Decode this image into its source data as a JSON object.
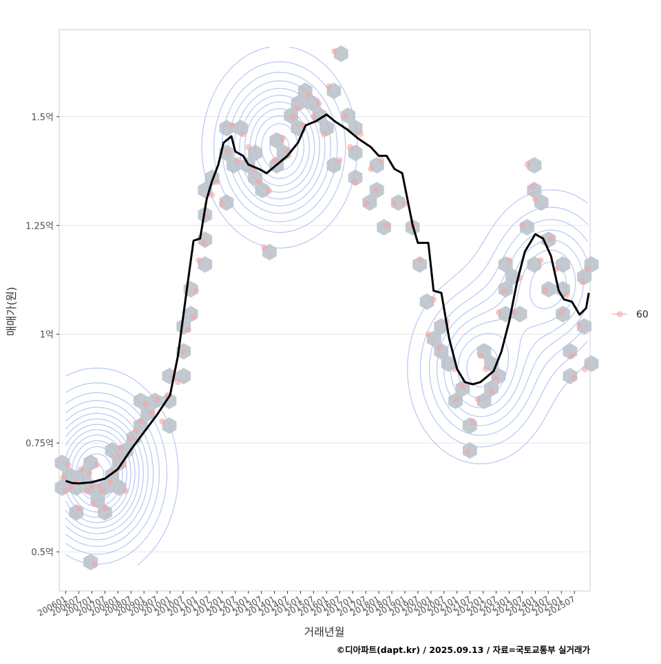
{
  "chart_data": {
    "type": "scatter",
    "title": "",
    "xlabel": "거래년월",
    "ylabel": "매매가(원)",
    "caption": "©디아파트(dapt.kr) / 2025.09.13 / 자료=국토교통부 실거래가",
    "legend": {
      "label": "60",
      "placement": "right"
    },
    "x_ticks": [
      "200601",
      "200607",
      "200701",
      "200707",
      "200801",
      "200807",
      "200901",
      "200907",
      "201001",
      "201007",
      "201101",
      "201107",
      "201201",
      "201207",
      "201301",
      "201307",
      "201401",
      "201407",
      "201501",
      "201507",
      "201601",
      "201607",
      "201701",
      "201707",
      "201801",
      "201807",
      "201901",
      "201907",
      "202001",
      "202007",
      "202101",
      "202107",
      "202201",
      "202207",
      "202301",
      "202307",
      "202401",
      "202407",
      "202501",
      "202507"
    ],
    "y_ticks": [
      {
        "value": 0.5,
        "label": "0.5억"
      },
      {
        "value": 0.75,
        "label": "0.75억"
      },
      {
        "value": 1.0,
        "label": "1억"
      },
      {
        "value": 1.25,
        "label": "1.25억"
      },
      {
        "value": 1.5,
        "label": "1.5억"
      }
    ],
    "ylim": [
      0.41,
      1.7
    ],
    "xlim": [
      2005.75,
      2026.1
    ],
    "grid": true,
    "colors": {
      "trend": "#000000",
      "points": "#f4a6a6",
      "hex": "#b9c0c8",
      "contour": "#9db4f0",
      "grid": "#e6e6e6",
      "panel_border": "#cccccc"
    },
    "trend_line": [
      [
        2006.0,
        0.663
      ],
      [
        2006.25,
        0.658
      ],
      [
        2006.5,
        0.657
      ],
      [
        2007.0,
        0.66
      ],
      [
        2007.5,
        0.668
      ],
      [
        2008.0,
        0.69
      ],
      [
        2008.5,
        0.735
      ],
      [
        2009.0,
        0.775
      ],
      [
        2009.5,
        0.815
      ],
      [
        2010.0,
        0.86
      ],
      [
        2010.3,
        0.95
      ],
      [
        2010.5,
        1.04
      ],
      [
        2010.75,
        1.15
      ],
      [
        2010.9,
        1.215
      ],
      [
        2011.15,
        1.22
      ],
      [
        2011.4,
        1.31
      ],
      [
        2011.6,
        1.35
      ],
      [
        2011.85,
        1.39
      ],
      [
        2012.05,
        1.44
      ],
      [
        2012.35,
        1.455
      ],
      [
        2012.5,
        1.42
      ],
      [
        2012.8,
        1.41
      ],
      [
        2013.0,
        1.39
      ],
      [
        2013.4,
        1.38
      ],
      [
        2013.7,
        1.37
      ],
      [
        2014.0,
        1.385
      ],
      [
        2014.5,
        1.41
      ],
      [
        2014.9,
        1.44
      ],
      [
        2015.2,
        1.48
      ],
      [
        2015.6,
        1.49
      ],
      [
        2016.0,
        1.505
      ],
      [
        2016.3,
        1.49
      ],
      [
        2016.8,
        1.47
      ],
      [
        2017.2,
        1.45
      ],
      [
        2017.7,
        1.43
      ],
      [
        2018.0,
        1.41
      ],
      [
        2018.3,
        1.41
      ],
      [
        2018.6,
        1.38
      ],
      [
        2018.9,
        1.37
      ],
      [
        2019.1,
        1.31
      ],
      [
        2019.3,
        1.25
      ],
      [
        2019.5,
        1.21
      ],
      [
        2019.9,
        1.21
      ],
      [
        2020.1,
        1.1
      ],
      [
        2020.4,
        1.095
      ],
      [
        2020.7,
        0.99
      ],
      [
        2021.0,
        0.92
      ],
      [
        2021.3,
        0.89
      ],
      [
        2021.6,
        0.885
      ],
      [
        2021.9,
        0.89
      ],
      [
        2022.1,
        0.9
      ],
      [
        2022.4,
        0.915
      ],
      [
        2022.7,
        0.96
      ],
      [
        2023.0,
        1.03
      ],
      [
        2023.3,
        1.12
      ],
      [
        2023.6,
        1.19
      ],
      [
        2023.8,
        1.21
      ],
      [
        2024.0,
        1.23
      ],
      [
        2024.3,
        1.22
      ],
      [
        2024.6,
        1.18
      ],
      [
        2024.9,
        1.1
      ],
      [
        2025.1,
        1.08
      ],
      [
        2025.4,
        1.075
      ],
      [
        2025.7,
        1.045
      ],
      [
        2025.95,
        1.06
      ],
      [
        2026.05,
        1.095
      ]
    ],
    "density_centers": [
      {
        "x": 2007.2,
        "y": 0.68,
        "n": 15
      },
      {
        "x": 2014.2,
        "y": 1.43,
        "n": 12
      },
      {
        "x": 2021.9,
        "y": 0.92,
        "n": 9
      },
      {
        "x": 2024.6,
        "y": 1.12,
        "n": 8
      }
    ],
    "points": [
      [
        2005.9,
        0.67
      ],
      [
        2006.0,
        0.64
      ],
      [
        2006.1,
        0.7
      ],
      [
        2006.2,
        0.65
      ],
      [
        2006.4,
        0.66
      ],
      [
        2006.5,
        0.6
      ],
      [
        2006.6,
        0.69
      ],
      [
        2006.8,
        0.64
      ],
      [
        2006.9,
        0.68
      ],
      [
        2007.0,
        0.65
      ],
      [
        2007.1,
        0.61
      ],
      [
        2007.1,
        0.47
      ],
      [
        2007.2,
        0.7
      ],
      [
        2007.3,
        0.65
      ],
      [
        2007.4,
        0.64
      ],
      [
        2007.5,
        0.6
      ],
      [
        2007.7,
        0.66
      ],
      [
        2007.8,
        0.68
      ],
      [
        2008.0,
        0.72
      ],
      [
        2008.1,
        0.74
      ],
      [
        2008.2,
        0.7
      ],
      [
        2008.3,
        0.64
      ],
      [
        2008.5,
        0.76
      ],
      [
        2008.7,
        0.78
      ],
      [
        2008.9,
        0.8
      ],
      [
        2009.1,
        0.84
      ],
      [
        2009.3,
        0.82
      ],
      [
        2009.5,
        0.85
      ],
      [
        2009.7,
        0.8
      ],
      [
        2009.9,
        0.86
      ],
      [
        2010.1,
        0.9
      ],
      [
        2010.3,
        0.89
      ],
      [
        2010.5,
        0.96
      ],
      [
        2010.7,
        1.01
      ],
      [
        2010.9,
        1.04
      ],
      [
        2011.0,
        1.1
      ],
      [
        2011.1,
        1.17
      ],
      [
        2011.3,
        1.21
      ],
      [
        2011.4,
        1.27
      ],
      [
        2011.6,
        1.32
      ],
      [
        2011.8,
        1.35
      ],
      [
        2012.0,
        1.3
      ],
      [
        2012.2,
        1.42
      ],
      [
        2012.4,
        1.48
      ],
      [
        2012.6,
        1.4
      ],
      [
        2012.8,
        1.46
      ],
      [
        2013.0,
        1.43
      ],
      [
        2013.2,
        1.38
      ],
      [
        2013.4,
        1.35
      ],
      [
        2013.6,
        1.2
      ],
      [
        2013.8,
        1.33
      ],
      [
        2014.0,
        1.4
      ],
      [
        2014.3,
        1.45
      ],
      [
        2014.5,
        1.42
      ],
      [
        2014.7,
        1.5
      ],
      [
        2014.9,
        1.52
      ],
      [
        2015.1,
        1.48
      ],
      [
        2015.3,
        1.55
      ],
      [
        2015.5,
        1.5
      ],
      [
        2015.7,
        1.53
      ],
      [
        2015.9,
        1.46
      ],
      [
        2016.1,
        1.57
      ],
      [
        2016.3,
        1.65
      ],
      [
        2016.5,
        1.4
      ],
      [
        2016.7,
        1.5
      ],
      [
        2016.9,
        1.43
      ],
      [
        2017.1,
        1.35
      ],
      [
        2017.3,
        1.46
      ],
      [
        2017.5,
        1.3
      ],
      [
        2017.7,
        1.38
      ],
      [
        2017.9,
        1.33
      ],
      [
        2018.1,
        1.4
      ],
      [
        2018.3,
        1.25
      ],
      [
        2018.6,
        1.3
      ],
      [
        2019.0,
        1.3
      ],
      [
        2019.3,
        1.25
      ],
      [
        2019.6,
        1.17
      ],
      [
        2019.9,
        1.0
      ],
      [
        2020.1,
        1.08
      ],
      [
        2020.3,
        0.97
      ],
      [
        2020.6,
        1.03
      ],
      [
        2020.9,
        0.92
      ],
      [
        2021.0,
        0.85
      ],
      [
        2021.2,
        0.88
      ],
      [
        2021.4,
        0.73
      ],
      [
        2021.6,
        0.8
      ],
      [
        2021.8,
        0.85
      ],
      [
        2021.9,
        0.95
      ],
      [
        2022.1,
        0.92
      ],
      [
        2022.3,
        0.87
      ],
      [
        2022.5,
        0.9
      ],
      [
        2022.6,
        1.05
      ],
      [
        2022.8,
        1.1
      ],
      [
        2023.0,
        1.17
      ],
      [
        2023.2,
        1.05
      ],
      [
        2023.4,
        1.13
      ],
      [
        2023.5,
        1.25
      ],
      [
        2023.7,
        1.39
      ],
      [
        2023.9,
        1.34
      ],
      [
        2024.0,
        1.31
      ],
      [
        2024.2,
        1.17
      ],
      [
        2024.4,
        1.1
      ],
      [
        2024.6,
        1.22
      ],
      [
        2024.8,
        1.15
      ],
      [
        2025.0,
        1.05
      ],
      [
        2025.2,
        1.09
      ],
      [
        2025.4,
        0.95
      ],
      [
        2025.5,
        0.9
      ],
      [
        2025.7,
        1.02
      ],
      [
        2025.8,
        1.12
      ],
      [
        2026.0,
        1.15
      ],
      [
        2025.9,
        0.92
      ]
    ]
  }
}
